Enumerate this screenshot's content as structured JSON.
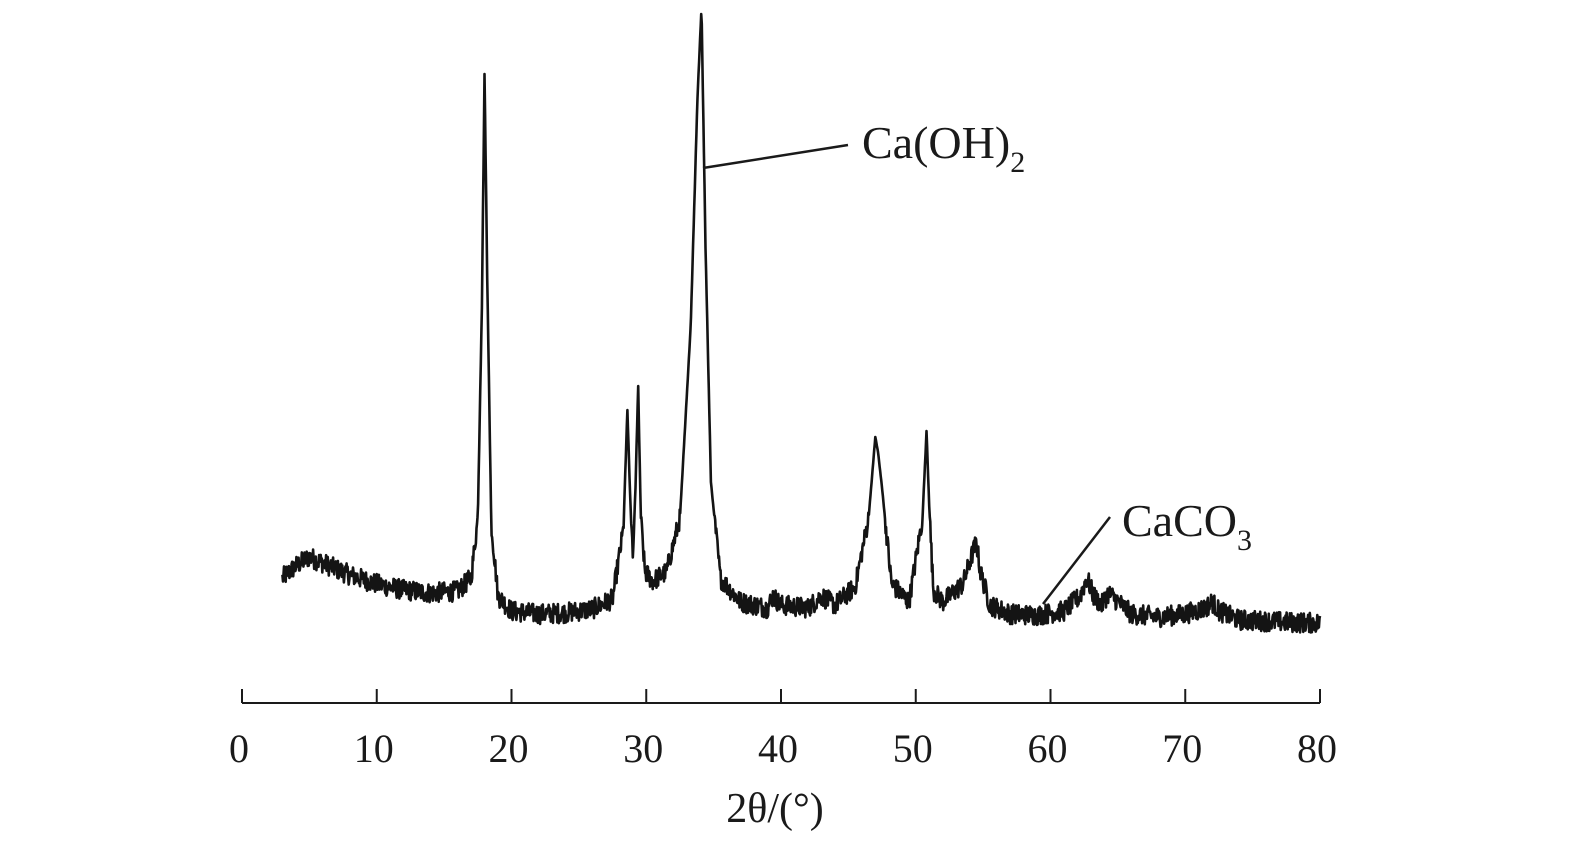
{
  "chart_data": {
    "type": "line",
    "xlabel": "2θ/(°)",
    "xlim": [
      0,
      80
    ],
    "x_ticks": [
      0,
      10,
      20,
      30,
      40,
      50,
      60,
      70,
      80
    ],
    "y_axis_shown": false,
    "grid": false,
    "legend": "none",
    "series": [
      {
        "x": [
          3,
          4,
          5,
          6,
          8,
          10,
          12,
          14,
          16,
          17,
          17.5,
          17.8,
          18.0,
          18.2,
          18.5,
          19,
          20,
          22,
          24,
          26,
          27.5,
          28.3,
          28.6,
          28.8,
          29.0,
          29.2,
          29.4,
          29.6,
          29.9,
          30.5,
          31.5,
          32.5,
          33.3,
          33.8,
          34.1,
          34.4,
          34.8,
          35.5,
          37,
          39,
          39.4,
          40,
          42,
          43.0,
          44,
          45.5,
          46.5,
          47.0,
          47.2,
          47.5,
          48.2,
          49.5,
          50.5,
          50.8,
          51.0,
          51.3,
          52,
          53.5,
          54.2,
          54.5,
          54.8,
          55.5,
          57,
          59,
          61,
          62.2,
          62.7,
          63.2,
          63.8,
          64.3,
          64.8,
          66,
          68,
          70,
          71.5,
          72.0,
          72.5,
          74,
          76,
          78,
          80
        ],
        "y": [
          100,
          120,
          135,
          125,
          105,
          90,
          80,
          75,
          78,
          100,
          200,
          550,
          940,
          600,
          190,
          70,
          45,
          40,
          42,
          48,
          65,
          180,
          380,
          240,
          130,
          250,
          420,
          200,
          110,
          95,
          110,
          200,
          520,
          900,
          1050,
          650,
          260,
          100,
          60,
          50,
          70,
          55,
          50,
          70,
          55,
          85,
          200,
          335,
          310,
          250,
          90,
          60,
          200,
          345,
          220,
          80,
          60,
          90,
          140,
          160,
          110,
          55,
          40,
          38,
          45,
          70,
          100,
          70,
          55,
          75,
          65,
          40,
          35,
          40,
          50,
          60,
          45,
          30,
          28,
          26,
          25
        ]
      }
    ],
    "annotations": [
      {
        "text": "Ca(OH)",
        "subscript": "2",
        "x": 34.1
      },
      {
        "text": "CaCO",
        "subscript": "3",
        "x": 59.5
      }
    ]
  }
}
